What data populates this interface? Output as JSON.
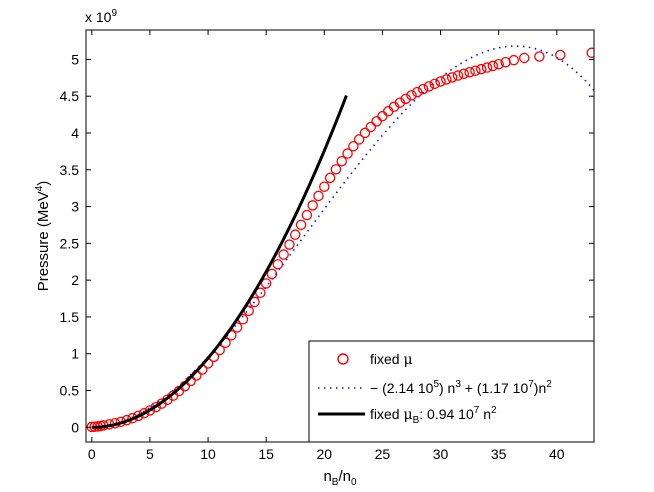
{
  "chart_data": {
    "type": "scatter",
    "multiplier_base": "x 10",
    "multiplier_exp": "9",
    "ylabel_main": "Pressure (MeV",
    "ylabel_sup": "4",
    "ylabel_end": ")",
    "xlabel_main": "n",
    "xlabel_sub1": "B",
    "xlabel_mid": "/n",
    "xlabel_sub2": "0",
    "xlim": [
      -0.5,
      43.2
    ],
    "ylim": [
      -0.2,
      5.4
    ],
    "xticks": [
      0,
      5,
      10,
      15,
      20,
      25,
      30,
      35,
      40
    ],
    "yticks": [
      0,
      0.5,
      1,
      1.5,
      2,
      2.5,
      3,
      3.5,
      4,
      4.5,
      5
    ],
    "xtick_labels": [
      "0",
      "5",
      "10",
      "15",
      "20",
      "25",
      "30",
      "35",
      "40"
    ],
    "ytick_labels": [
      "0",
      "0.5",
      "1",
      "1.5",
      "2",
      "2.5",
      "3",
      "3.5",
      "4",
      "4.5",
      "5"
    ],
    "grid": false,
    "legend_position": "bottom-right",
    "series": [
      {
        "id": "fixed-mu",
        "style": "circles",
        "color": "#ff0000",
        "legend_main": "fixed ",
        "legend_mu": "μ",
        "x": [
          0.0,
          0.25,
          0.5,
          0.75,
          1.0,
          1.5,
          2.0,
          2.5,
          3.0,
          3.5,
          4.0,
          4.5,
          5.0,
          5.5,
          6.0,
          6.5,
          7.0,
          7.5,
          8.0,
          8.5,
          9.0,
          9.5,
          10.0,
          10.5,
          11.0,
          11.5,
          12.0,
          12.5,
          13.0,
          13.5,
          14.0,
          14.5,
          15.0,
          15.5,
          16.0,
          16.5,
          17.0,
          17.5,
          18.0,
          18.5,
          19.0,
          19.5,
          20.0,
          20.5,
          21.0,
          21.5,
          22.0,
          22.5,
          23.0,
          23.5,
          24.0,
          24.5,
          25.0,
          25.5,
          26.0,
          26.5,
          27.0,
          27.5,
          28.0,
          28.5,
          29.0,
          29.5,
          30.0,
          30.5,
          31.0,
          31.5,
          32.0,
          32.5,
          33.0,
          33.5,
          34.0,
          34.5,
          35.0,
          35.6,
          36.3,
          37.2,
          38.5,
          40.3,
          43.0
        ],
        "y": [
          0.005,
          0.008,
          0.012,
          0.018,
          0.026,
          0.04,
          0.055,
          0.074,
          0.097,
          0.124,
          0.155,
          0.19,
          0.229,
          0.273,
          0.321,
          0.373,
          0.43,
          0.492,
          0.558,
          0.629,
          0.704,
          0.784,
          0.868,
          0.957,
          1.05,
          1.148,
          1.25,
          1.357,
          1.468,
          1.584,
          1.704,
          1.828,
          1.955,
          2.084,
          2.215,
          2.348,
          2.483,
          2.618,
          2.752,
          2.885,
          3.016,
          3.145,
          3.27,
          3.39,
          3.506,
          3.616,
          3.721,
          3.82,
          3.913,
          4.001,
          4.082,
          4.158,
          4.229,
          4.295,
          4.356,
          4.412,
          4.464,
          4.512,
          4.556,
          4.597,
          4.634,
          4.668,
          4.7,
          4.729,
          4.756,
          4.781,
          4.804,
          4.826,
          4.847,
          4.868,
          4.89,
          4.912,
          4.935,
          4.962,
          4.99,
          5.02,
          5.04,
          5.06,
          5.09
        ]
      },
      {
        "id": "fit",
        "style": "dotted",
        "color": "#0000ff",
        "coef_n3": -214000.0,
        "coef_n2": 11700000.0,
        "x_range": [
          0,
          43.2
        ],
        "legend_a": "− (2.14 10",
        "legend_a_sup": "5",
        "legend_b": ") n",
        "legend_b_sup": "3",
        "legend_c": " + (1.17 10",
        "legend_c_sup": "7",
        "legend_d": ")n",
        "legend_d_sup": "2"
      },
      {
        "id": "fixed-muB",
        "style": "solid",
        "color": "#000000",
        "coef_n2": 9400000.0,
        "x_range": [
          0,
          21.9
        ],
        "legend_a": "fixed ",
        "legend_mu": "μ",
        "legend_sub": "B",
        "legend_b": ":  0.94 10",
        "legend_b_sup": "7",
        "legend_c": " n",
        "legend_c_sup": "2"
      }
    ]
  }
}
